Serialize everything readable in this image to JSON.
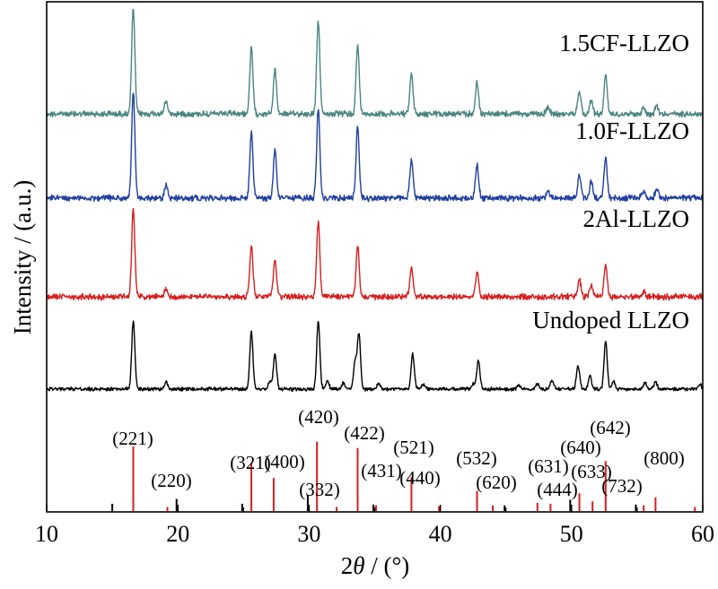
{
  "chart_data": {
    "type": "line",
    "xlabel_prefix": "2",
    "xlabel_symbol": "θ",
    "xlabel_suffix": " / (°)",
    "ylabel": "Intensity / (a.u.)",
    "xlim": [
      10,
      60
    ],
    "xticks": [
      "10",
      "20",
      "30",
      "40",
      "50",
      "60"
    ],
    "yticks_shown": false,
    "colors": {
      "1.5CF-LLZO": "#4a8580",
      "1.0F-LLZO": "#1f3fa0",
      "2Al-LLZO": "#d61f1f",
      "Undoped LLZO": "#000000",
      "reference_red": "#d61f1f",
      "reference_black": "#000000"
    },
    "series": [
      {
        "name": "1.5CF-LLZO",
        "peaks": [
          {
            "x": 16.6,
            "h": 1.0
          },
          {
            "x": 19.1,
            "h": 0.12
          },
          {
            "x": 25.6,
            "h": 0.62
          },
          {
            "x": 27.4,
            "h": 0.42
          },
          {
            "x": 30.7,
            "h": 0.88
          },
          {
            "x": 33.7,
            "h": 0.65
          },
          {
            "x": 37.8,
            "h": 0.38
          },
          {
            "x": 42.8,
            "h": 0.3
          },
          {
            "x": 48.2,
            "h": 0.06
          },
          {
            "x": 50.6,
            "h": 0.22
          },
          {
            "x": 51.5,
            "h": 0.13
          },
          {
            "x": 52.6,
            "h": 0.37
          },
          {
            "x": 55.5,
            "h": 0.06
          },
          {
            "x": 56.5,
            "h": 0.08
          }
        ]
      },
      {
        "name": "1.0F-LLZO",
        "peaks": [
          {
            "x": 16.6,
            "h": 1.0
          },
          {
            "x": 19.1,
            "h": 0.12
          },
          {
            "x": 25.6,
            "h": 0.62
          },
          {
            "x": 27.4,
            "h": 0.45
          },
          {
            "x": 30.7,
            "h": 0.85
          },
          {
            "x": 33.7,
            "h": 0.67
          },
          {
            "x": 37.8,
            "h": 0.37
          },
          {
            "x": 42.8,
            "h": 0.31
          },
          {
            "x": 48.2,
            "h": 0.07
          },
          {
            "x": 50.6,
            "h": 0.22
          },
          {
            "x": 51.5,
            "h": 0.15
          },
          {
            "x": 52.6,
            "h": 0.38
          },
          {
            "x": 55.5,
            "h": 0.07
          },
          {
            "x": 56.5,
            "h": 0.09
          }
        ]
      },
      {
        "name": "2Al-LLZO",
        "peaks": [
          {
            "x": 16.6,
            "h": 1.0
          },
          {
            "x": 19.1,
            "h": 0.08
          },
          {
            "x": 25.6,
            "h": 0.6
          },
          {
            "x": 27.4,
            "h": 0.42
          },
          {
            "x": 30.7,
            "h": 0.86
          },
          {
            "x": 33.7,
            "h": 0.61
          },
          {
            "x": 37.8,
            "h": 0.34
          },
          {
            "x": 42.8,
            "h": 0.3
          },
          {
            "x": 50.6,
            "h": 0.2
          },
          {
            "x": 51.5,
            "h": 0.14
          },
          {
            "x": 52.6,
            "h": 0.38
          },
          {
            "x": 55.5,
            "h": 0.06
          }
        ]
      },
      {
        "name": "Undoped LLZO",
        "peaks": [
          {
            "x": 16.6,
            "h": 0.88
          },
          {
            "x": 19.1,
            "h": 0.1
          },
          {
            "x": 25.6,
            "h": 0.75
          },
          {
            "x": 27.0,
            "h": 0.1
          },
          {
            "x": 27.4,
            "h": 0.46
          },
          {
            "x": 30.7,
            "h": 0.88
          },
          {
            "x": 31.4,
            "h": 0.1
          },
          {
            "x": 32.6,
            "h": 0.08
          },
          {
            "x": 33.5,
            "h": 0.35
          },
          {
            "x": 33.8,
            "h": 0.72
          },
          {
            "x": 35.3,
            "h": 0.08
          },
          {
            "x": 37.9,
            "h": 0.45
          },
          {
            "x": 38.7,
            "h": 0.06
          },
          {
            "x": 42.5,
            "h": 0.06
          },
          {
            "x": 42.9,
            "h": 0.38
          },
          {
            "x": 46.0,
            "h": 0.05
          },
          {
            "x": 47.4,
            "h": 0.07
          },
          {
            "x": 48.5,
            "h": 0.12
          },
          {
            "x": 50.5,
            "h": 0.3
          },
          {
            "x": 51.4,
            "h": 0.17
          },
          {
            "x": 52.6,
            "h": 0.62
          },
          {
            "x": 53.2,
            "h": 0.1
          },
          {
            "x": 55.6,
            "h": 0.08
          },
          {
            "x": 56.4,
            "h": 0.1
          },
          {
            "x": 59.8,
            "h": 0.05
          }
        ]
      }
    ],
    "reference_lines": [
      {
        "x": 16.6,
        "h": 0.8,
        "color": "red",
        "label": "(221)"
      },
      {
        "x": 19.2,
        "h": 0.05,
        "color": "red",
        "label": "(220)"
      },
      {
        "x": 25.6,
        "h": 0.6,
        "color": "red",
        "label": "(321)"
      },
      {
        "x": 27.3,
        "h": 0.41,
        "color": "red",
        "label": "(400)"
      },
      {
        "x": 30.6,
        "h": 0.86,
        "color": "red",
        "label": "(420)"
      },
      {
        "x": 32.1,
        "h": 0.05,
        "color": "red",
        "label": "(332)"
      },
      {
        "x": 33.7,
        "h": 0.78,
        "color": "red",
        "label": "(422)"
      },
      {
        "x": 35.1,
        "h": 0.07,
        "color": "red",
        "label": "(431)"
      },
      {
        "x": 37.8,
        "h": 0.42,
        "color": "red",
        "label": "(521)"
      },
      {
        "x": 39.9,
        "h": 0.06,
        "color": "red",
        "label": "(440)"
      },
      {
        "x": 42.8,
        "h": 0.25,
        "color": "red",
        "label": "(532)"
      },
      {
        "x": 44.0,
        "h": 0.07,
        "color": "red",
        "label": "(620)"
      },
      {
        "x": 47.4,
        "h": 0.1,
        "color": "red",
        "label": "(631)"
      },
      {
        "x": 48.4,
        "h": 0.09,
        "color": "red",
        "label": "(444)"
      },
      {
        "x": 50.6,
        "h": 0.22,
        "color": "red",
        "label": "(640)"
      },
      {
        "x": 51.6,
        "h": 0.12,
        "color": "red",
        "label": "(633)"
      },
      {
        "x": 52.6,
        "h": 0.62,
        "color": "red",
        "label": "(642)"
      },
      {
        "x": 55.5,
        "h": 0.07,
        "color": "red",
        "label": "(732)"
      },
      {
        "x": 56.4,
        "h": 0.17,
        "color": "red",
        "label": "(800)"
      },
      {
        "x": 59.4,
        "h": 0.05,
        "color": "red",
        "label": ""
      },
      {
        "x": 15.0,
        "h": 0.09,
        "color": "black",
        "label": ""
      },
      {
        "x": 19.9,
        "h": 0.15,
        "color": "black",
        "label": ""
      },
      {
        "x": 24.9,
        "h": 0.09,
        "color": "black",
        "label": ""
      },
      {
        "x": 29.9,
        "h": 0.2,
        "color": "black",
        "label": ""
      },
      {
        "x": 34.9,
        "h": 0.08,
        "color": "black",
        "label": ""
      },
      {
        "x": 44.9,
        "h": 0.07,
        "color": "black",
        "label": ""
      },
      {
        "x": 49.9,
        "h": 0.14,
        "color": "black",
        "label": ""
      },
      {
        "x": 54.9,
        "h": 0.08,
        "color": "black",
        "label": ""
      }
    ]
  }
}
